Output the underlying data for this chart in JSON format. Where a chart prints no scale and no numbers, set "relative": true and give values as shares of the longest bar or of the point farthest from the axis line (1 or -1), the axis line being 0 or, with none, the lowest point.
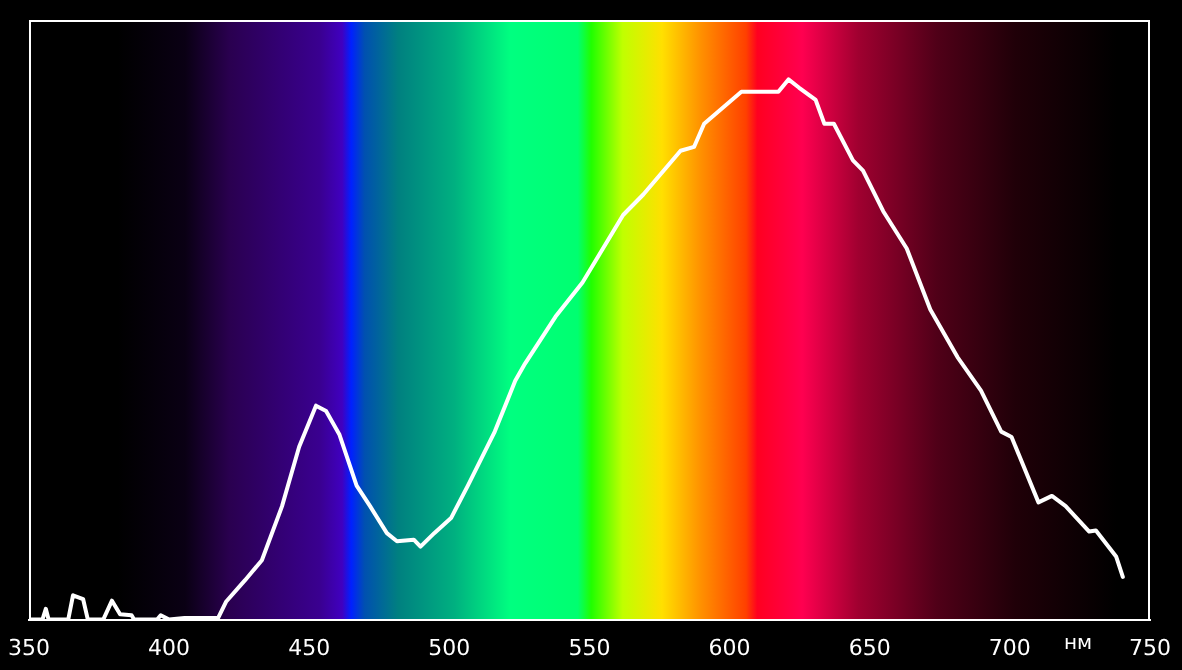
{
  "chart_data": {
    "type": "line",
    "xlabel": "нм",
    "relative": true,
    "xlim": [
      350,
      750
    ],
    "xticks": [
      350,
      400,
      450,
      500,
      550,
      600,
      650,
      700,
      750
    ],
    "x": [
      350,
      354.8,
      356,
      357,
      364,
      365.7,
      369.3,
      371,
      376.5,
      379.6,
      382.5,
      386.6,
      387.5,
      395.7,
      397,
      400,
      405.5,
      417.5,
      420.3,
      427.1,
      433.1,
      440.3,
      446.4,
      452.4,
      456,
      460.8,
      466.9,
      471.7,
      477.7,
      481.3,
      487.3,
      489.7,
      494.6,
      500.6,
      506.6,
      516.2,
      523.5,
      527,
      537.9,
      547.5,
      562,
      569.2,
      582.5,
      587.3,
      590.9,
      604.2,
      617.4,
      621,
      624.7,
      630.7,
      633.8,
      637.2,
      644,
      647.6,
      654.8,
      663.2,
      671.6,
      681.3,
      689.7,
      696.9,
      700.6,
      710.2,
      715,
      719.9,
      728.3,
      730.7,
      737.9,
      740.3
    ],
    "series": [
      {
        "color": "#ffffff",
        "values": [
          0,
          0,
          0.02,
          0,
          0,
          0.045,
          0.038,
          0,
          0,
          0.035,
          0.01,
          0.008,
          0,
          0,
          0.008,
          0,
          0.003,
          0.003,
          0.033,
          0.073,
          0.11,
          0.21,
          0.32,
          0.396,
          0.386,
          0.342,
          0.248,
          0.21,
          0.16,
          0.145,
          0.148,
          0.135,
          0.16,
          0.188,
          0.248,
          0.348,
          0.442,
          0.474,
          0.561,
          0.624,
          0.749,
          0.787,
          0.868,
          0.875,
          0.918,
          0.977,
          0.977,
          1,
          0.985,
          0.962,
          0.918,
          0.918,
          0.85,
          0.831,
          0.756,
          0.687,
          0.574,
          0.486,
          0.424,
          0.348,
          0.338,
          0.217,
          0.229,
          0.21,
          0.163,
          0.165,
          0.117,
          0.079
        ]
      }
    ]
  }
}
